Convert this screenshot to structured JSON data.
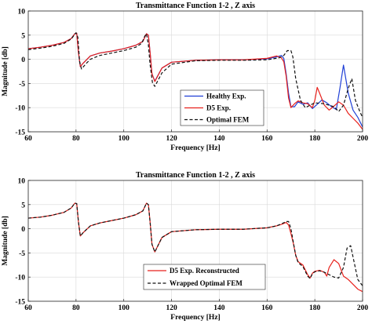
{
  "chart_data": [
    {
      "type": "line",
      "title": "Transmittance Function 1-2 , Z axis",
      "xlabel": "Frequency [Hz]",
      "ylabel": "Magnitude [db]",
      "xlim": [
        60,
        200
      ],
      "ylim": [
        -15,
        10
      ],
      "xticks": [
        "60",
        "80",
        "100",
        "120",
        "140",
        "160",
        "180",
        "200"
      ],
      "yticks": [
        "10",
        "5",
        "0",
        "-5",
        "-10",
        "-15"
      ],
      "grid": true,
      "legend_position": "bottom-right",
      "series": [
        {
          "name": "Healthy Exp.",
          "color": "#1f3fd6",
          "dash": "solid",
          "x": [
            60,
            65,
            70,
            75,
            78,
            79.5,
            80.3,
            81,
            81.8,
            83,
            86,
            90,
            95,
            100,
            105,
            108,
            109.5,
            110.3,
            111,
            111.8,
            113,
            116,
            120,
            130,
            140,
            150,
            160,
            164,
            166,
            167,
            168,
            169,
            170,
            171.5,
            173,
            175,
            177,
            179,
            181,
            183,
            185,
            187,
            189,
            190.5,
            192,
            194,
            196,
            198,
            200
          ],
          "y": [
            2.2,
            2.5,
            2.9,
            3.5,
            4.3,
            5.3,
            5.4,
            1.5,
            -1.5,
            -0.8,
            0.7,
            1.3,
            1.7,
            2.2,
            2.9,
            3.7,
            5.3,
            5.0,
            1.5,
            -3.0,
            -4.5,
            -1.8,
            -0.6,
            -0.2,
            -0.1,
            -0.1,
            0.1,
            0.5,
            0.8,
            0.2,
            -3.0,
            -7.0,
            -9.8,
            -9.8,
            -8.8,
            -9.3,
            -9.0,
            -10.2,
            -9.3,
            -8.4,
            -9.0,
            -9.8,
            -10.4,
            -6.0,
            -1.2,
            -7.0,
            -10.5,
            -12.0,
            -14.0
          ]
        },
        {
          "name": "D5 Exp.",
          "color": "#e8211c",
          "dash": "solid",
          "x": [
            60,
            65,
            70,
            75,
            78,
            79.5,
            80.3,
            81,
            81.8,
            83,
            86,
            90,
            95,
            100,
            105,
            108,
            109.5,
            110.3,
            111,
            111.8,
            113,
            116,
            120,
            130,
            140,
            150,
            160,
            164,
            166,
            167,
            168,
            169,
            170,
            171.5,
            173,
            175,
            177,
            179,
            180,
            181,
            182,
            184,
            186,
            188,
            190,
            192,
            194,
            196,
            198,
            200
          ],
          "y": [
            2.2,
            2.5,
            2.9,
            3.5,
            4.3,
            5.3,
            5.4,
            1.5,
            -1.5,
            -0.8,
            0.7,
            1.3,
            1.7,
            2.2,
            2.9,
            3.7,
            5.3,
            5.0,
            1.5,
            -3.0,
            -4.6,
            -1.8,
            -0.6,
            -0.2,
            -0.1,
            -0.1,
            0.2,
            0.7,
            0.3,
            -0.5,
            -3.5,
            -8.0,
            -10.0,
            -9.2,
            -8.6,
            -9.0,
            -9.2,
            -10.0,
            -8.5,
            -5.8,
            -7.0,
            -9.5,
            -10.5,
            -9.7,
            -8.8,
            -9.5,
            -11.2,
            -12.2,
            -13.2,
            -14.5
          ]
        },
        {
          "name": "Optimal FEM",
          "color": "#111111",
          "dash": "dashed",
          "x": [
            60,
            65,
            70,
            75,
            78,
            80,
            80.8,
            81.5,
            82.3,
            84,
            86,
            90,
            95,
            100,
            105,
            107.5,
            108.8,
            109.5,
            110.3,
            111,
            112,
            113,
            116,
            120,
            130,
            140,
            150,
            160,
            165,
            167,
            168.5,
            170,
            170.8,
            172,
            174,
            176,
            180,
            184,
            188,
            190,
            192,
            194,
            195.5,
            197,
            199,
            200
          ],
          "y": [
            2.0,
            2.3,
            2.7,
            3.3,
            4.2,
            5.5,
            4.5,
            -0.5,
            -2.0,
            -1.0,
            0.0,
            0.8,
            1.3,
            1.8,
            2.5,
            3.3,
            4.8,
            5.3,
            3.0,
            -1.0,
            -4.8,
            -5.6,
            -2.8,
            -1.0,
            -0.3,
            -0.2,
            -0.2,
            -0.1,
            0.3,
            0.8,
            1.8,
            1.8,
            0.5,
            -4.0,
            -8.5,
            -10.0,
            -9.0,
            -9.2,
            -9.8,
            -10.8,
            -9.5,
            -6.0,
            -4.0,
            -8.5,
            -11.0,
            -12.0
          ]
        }
      ]
    },
    {
      "type": "line",
      "title": "Transmittance Function 1-2 , Z axis",
      "xlabel": "Frequency [Hz]",
      "ylabel": "Magnitude [db]",
      "xlim": [
        60,
        200
      ],
      "ylim": [
        -15,
        10
      ],
      "xticks": [
        "60",
        "80",
        "100",
        "120",
        "140",
        "160",
        "180",
        "200"
      ],
      "yticks": [
        "10",
        "5",
        "0",
        "-5",
        "-10",
        "-15"
      ],
      "grid": true,
      "legend_position": "bottom-right",
      "series": [
        {
          "name": "D5 Exp. Reconstructed",
          "color": "#e8211c",
          "dash": "solid",
          "x": [
            60,
            65,
            70,
            75,
            78,
            79.5,
            80.3,
            81,
            81.8,
            83,
            86,
            90,
            95,
            100,
            105,
            108,
            109.5,
            110.3,
            111,
            111.8,
            113,
            116,
            120,
            130,
            140,
            150,
            160,
            164,
            166,
            168,
            169,
            170,
            171,
            172,
            173,
            175,
            177,
            178,
            179,
            180,
            182,
            184,
            185,
            186,
            188,
            190,
            192,
            194,
            196,
            198,
            200
          ],
          "y": [
            2.2,
            2.4,
            2.8,
            3.4,
            4.3,
            5.3,
            5.2,
            1.5,
            -1.5,
            -0.8,
            0.6,
            1.2,
            1.7,
            2.2,
            2.9,
            3.7,
            5.3,
            5.0,
            1.5,
            -3.2,
            -4.8,
            -1.8,
            -0.6,
            -0.2,
            -0.1,
            -0.1,
            0.2,
            0.6,
            0.9,
            1.3,
            0.8,
            -1.0,
            -3.0,
            -5.5,
            -6.8,
            -7.5,
            -9.5,
            -10.2,
            -9.2,
            -8.8,
            -8.6,
            -9.0,
            -9.8,
            -8.0,
            -6.4,
            -7.2,
            -9.8,
            -10.5,
            -11.5,
            -12.5,
            -13.0
          ]
        },
        {
          "name": "Wrapped Optimal  FEM",
          "color": "#111111",
          "dash": "dashed",
          "x": [
            60,
            65,
            70,
            75,
            78,
            79.5,
            80.3,
            81,
            81.8,
            83,
            86,
            90,
            95,
            100,
            105,
            108,
            109.5,
            110.3,
            111,
            111.8,
            113,
            116,
            120,
            130,
            140,
            150,
            160,
            164,
            166,
            168,
            169,
            170,
            171,
            172,
            173,
            175,
            177,
            178,
            179,
            180,
            182,
            184,
            186,
            188,
            190,
            192,
            193.5,
            195,
            196.5,
            198,
            200
          ],
          "y": [
            2.2,
            2.4,
            2.8,
            3.4,
            4.3,
            5.3,
            5.2,
            1.5,
            -1.5,
            -0.8,
            0.6,
            1.2,
            1.7,
            2.2,
            2.9,
            3.7,
            5.3,
            5.0,
            1.5,
            -3.2,
            -4.8,
            -1.8,
            -0.6,
            -0.2,
            -0.1,
            -0.1,
            0.2,
            0.6,
            1.0,
            1.5,
            1.5,
            0.0,
            -2.8,
            -5.5,
            -7.0,
            -7.8,
            -9.8,
            -10.3,
            -9.3,
            -8.9,
            -8.7,
            -9.0,
            -9.5,
            -10.0,
            -10.2,
            -8.0,
            -4.0,
            -3.5,
            -7.0,
            -10.5,
            -11.8
          ]
        }
      ]
    }
  ]
}
